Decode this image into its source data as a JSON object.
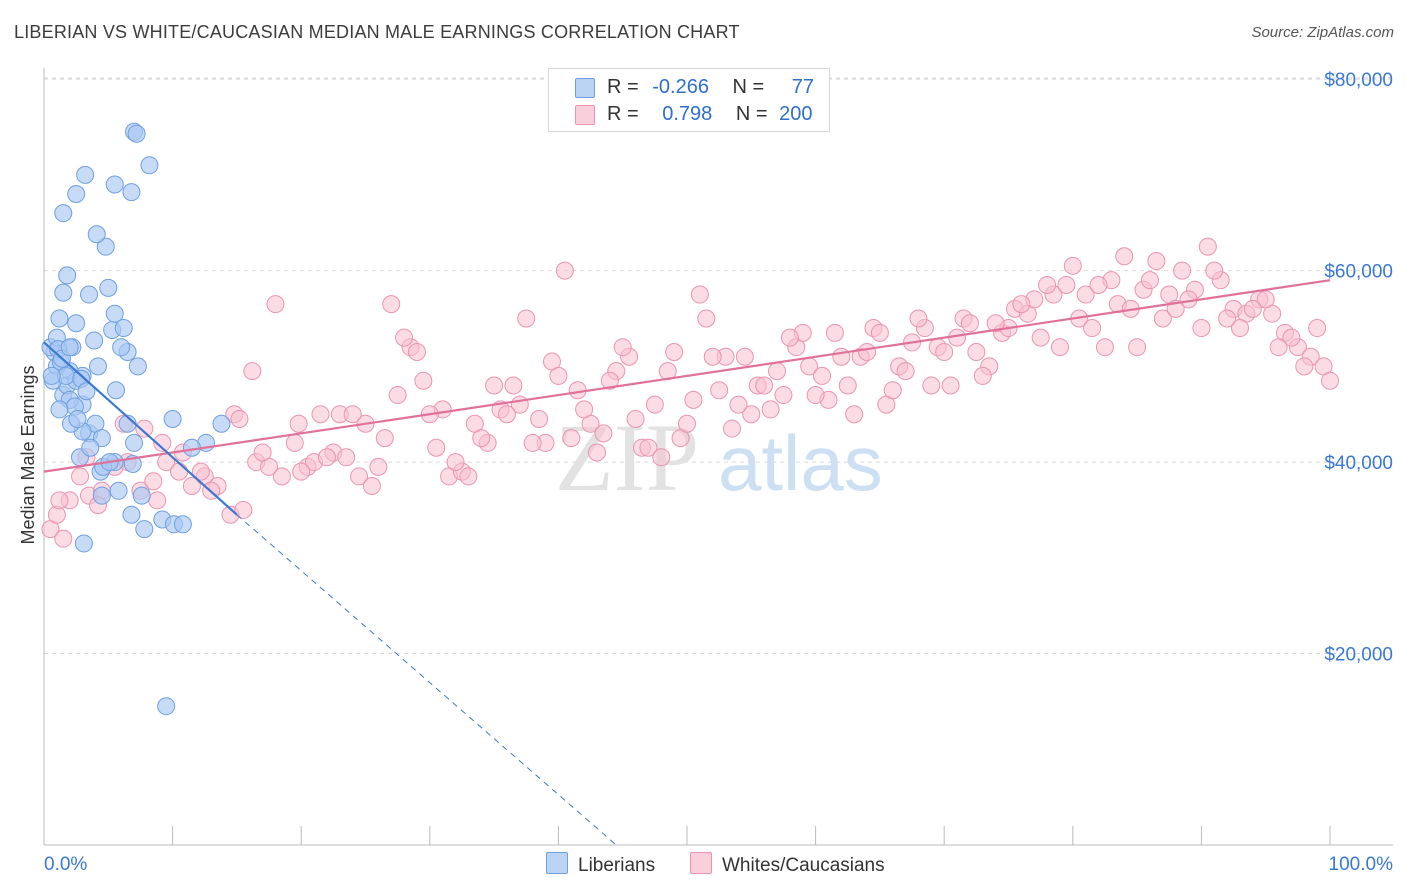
{
  "title": "LIBERIAN VS WHITE/CAUCASIAN MEDIAN MALE EARNINGS CORRELATION CHART",
  "source": "Source: ZipAtlas.com",
  "watermark": {
    "zip": "ZIP",
    "atlas": "atlas"
  },
  "legend": {
    "rows": [
      {
        "r_label": "R =",
        "r_value": "-0.266",
        "n_label": "N =",
        "n_value": "77"
      },
      {
        "r_label": "R =",
        "r_value": "0.798",
        "n_label": "N =",
        "n_value": "200"
      }
    ]
  },
  "bottom_legend": {
    "liberians": "Liberians",
    "whites": "Whites/Caucasians"
  },
  "colors": {
    "liberian_fill": "#a9c8f2",
    "liberian_stroke": "#6f9fe0",
    "liberian_line": "#3a78d4",
    "white_fill": "#f7bfd0",
    "white_stroke": "#eb94b0",
    "white_line": "#e0729a",
    "axis_text": "#3a78d4",
    "grid": "#d9d9d9"
  },
  "chart_data": {
    "type": "scatter",
    "title": "LIBERIAN VS WHITE/CAUCASIAN MEDIAN MALE EARNINGS CORRELATION CHART",
    "xlabel": "",
    "ylabel": "Median Male Earnings",
    "xlim": [
      0,
      100
    ],
    "ylim": [
      0,
      82000
    ],
    "x_tick_labels": [
      "0.0%",
      "100.0%"
    ],
    "y_ticks": [
      {
        "value": 20000,
        "label": "$20,000"
      },
      {
        "value": 40000,
        "label": "$40,000"
      },
      {
        "value": 60000,
        "label": "$60,000"
      },
      {
        "value": 80000,
        "label": "$80,000"
      }
    ],
    "series": [
      {
        "name": "Liberians",
        "r": -0.266,
        "n": 77,
        "trend": {
          "x0": 0,
          "y0": 52500,
          "x1": 15,
          "y1": 34500,
          "dash_x_end": 44.5,
          "dash_y_end": 0
        },
        "points": [
          [
            1.5,
            66000
          ],
          [
            1.2,
            55000
          ],
          [
            2.5,
            54500
          ],
          [
            3,
            49000
          ],
          [
            2,
            49500
          ],
          [
            1.5,
            47000
          ],
          [
            0.8,
            51500
          ],
          [
            1,
            50000
          ],
          [
            1.8,
            48000
          ],
          [
            2.2,
            52000
          ],
          [
            3.5,
            43000
          ],
          [
            4,
            44000
          ],
          [
            3,
            46000
          ],
          [
            2.5,
            48500
          ],
          [
            4.2,
            50000
          ],
          [
            0.5,
            52000
          ],
          [
            1,
            53000
          ],
          [
            3.5,
            57500
          ],
          [
            1.5,
            57700
          ],
          [
            1.8,
            59500
          ],
          [
            4.8,
            62500
          ],
          [
            4.1,
            63800
          ],
          [
            2.5,
            68000
          ],
          [
            3.2,
            70000
          ],
          [
            5.5,
            69000
          ],
          [
            6.8,
            68200
          ],
          [
            8.2,
            71000
          ],
          [
            7.0,
            74500
          ],
          [
            7.2,
            74300
          ],
          [
            5,
            58200
          ],
          [
            2,
            46500
          ],
          [
            2.8,
            40500
          ],
          [
            3,
            43200
          ],
          [
            4.5,
            42500
          ],
          [
            5.6,
            47500
          ],
          [
            6.5,
            44000
          ],
          [
            5.3,
            53800
          ],
          [
            5.5,
            55500
          ],
          [
            6.2,
            54000
          ],
          [
            6.5,
            51500
          ],
          [
            7.3,
            50000
          ],
          [
            7,
            42000
          ],
          [
            5.8,
            37000
          ],
          [
            4.4,
            39000
          ],
          [
            5.5,
            40000
          ],
          [
            6.9,
            39800
          ],
          [
            7.6,
            36500
          ],
          [
            9.2,
            34000
          ],
          [
            10.1,
            33500
          ],
          [
            10.8,
            33500
          ],
          [
            7.8,
            33000
          ],
          [
            4.6,
            39500
          ],
          [
            4.5,
            36500
          ],
          [
            6.8,
            34500
          ],
          [
            3.1,
            31500
          ],
          [
            10,
            44500
          ],
          [
            12.6,
            42000
          ],
          [
            13.8,
            44000
          ],
          [
            9.5,
            14500
          ],
          [
            1.3,
            50500
          ],
          [
            0.7,
            48500
          ],
          [
            1.1,
            51800
          ],
          [
            1.4,
            50800
          ],
          [
            2,
            52000
          ],
          [
            1.7,
            49000
          ],
          [
            0.6,
            49000
          ],
          [
            2.4,
            45800
          ],
          [
            2.9,
            48700
          ],
          [
            3.3,
            47400
          ],
          [
            2.1,
            44000
          ],
          [
            1.2,
            45500
          ],
          [
            5.1,
            40000
          ],
          [
            3.9,
            52700
          ],
          [
            6.0,
            52000
          ],
          [
            2.6,
            44500
          ],
          [
            3.6,
            41500
          ],
          [
            11.5,
            41500
          ]
        ]
      },
      {
        "name": "Whites/Caucasians",
        "r": 0.798,
        "n": 200,
        "trend": {
          "x0": 0,
          "y0": 39000,
          "x1": 100,
          "y1": 59000
        },
        "points": [
          [
            0.5,
            33000
          ],
          [
            1,
            34500
          ],
          [
            1.5,
            32000
          ],
          [
            2,
            36000
          ],
          [
            3.5,
            36500
          ],
          [
            4.5,
            37000
          ],
          [
            5.5,
            39500
          ],
          [
            6.5,
            40000
          ],
          [
            7.5,
            37000
          ],
          [
            8.5,
            38000
          ],
          [
            9.5,
            40000
          ],
          [
            10.5,
            39000
          ],
          [
            11.5,
            37500
          ],
          [
            12.5,
            38500
          ],
          [
            13.5,
            37500
          ],
          [
            14.5,
            34500
          ],
          [
            15.5,
            35000
          ],
          [
            16.5,
            40000
          ],
          [
            17.5,
            39500
          ],
          [
            18.5,
            38500
          ],
          [
            19.5,
            42000
          ],
          [
            20.5,
            39500
          ],
          [
            21.5,
            45000
          ],
          [
            22.5,
            41000
          ],
          [
            23.5,
            40500
          ],
          [
            24.5,
            38500
          ],
          [
            25.5,
            37500
          ],
          [
            26.5,
            42500
          ],
          [
            27.5,
            47000
          ],
          [
            28.5,
            52000
          ],
          [
            29.5,
            48500
          ],
          [
            30.5,
            41500
          ],
          [
            31.5,
            38500
          ],
          [
            32.5,
            39000
          ],
          [
            33.5,
            44000
          ],
          [
            34.5,
            42000
          ],
          [
            35.5,
            45500
          ],
          [
            36.5,
            48000
          ],
          [
            37.5,
            55000
          ],
          [
            38.5,
            44500
          ],
          [
            39.5,
            50500
          ],
          [
            40.5,
            60000
          ],
          [
            41.5,
            47500
          ],
          [
            42.5,
            44000
          ],
          [
            43.5,
            43000
          ],
          [
            44.5,
            49500
          ],
          [
            45.5,
            51000
          ],
          [
            46.5,
            41500
          ],
          [
            47.5,
            46000
          ],
          [
            48.5,
            49500
          ],
          [
            49.5,
            42500
          ],
          [
            50.5,
            46500
          ],
          [
            51.5,
            55000
          ],
          [
            52.5,
            47500
          ],
          [
            53.5,
            43500
          ],
          [
            54.5,
            51000
          ],
          [
            55.5,
            48000
          ],
          [
            56.5,
            45500
          ],
          [
            57.5,
            47000
          ],
          [
            58.5,
            52000
          ],
          [
            59.5,
            50000
          ],
          [
            60.5,
            49000
          ],
          [
            61.5,
            53500
          ],
          [
            62.5,
            48000
          ],
          [
            63.5,
            51000
          ],
          [
            64.5,
            54000
          ],
          [
            65.5,
            46000
          ],
          [
            66.5,
            50000
          ],
          [
            67.5,
            52500
          ],
          [
            68.5,
            54000
          ],
          [
            69.5,
            52000
          ],
          [
            70.5,
            48000
          ],
          [
            71.5,
            55000
          ],
          [
            72.5,
            51500
          ],
          [
            73.5,
            50000
          ],
          [
            74.5,
            53500
          ],
          [
            75.5,
            56000
          ],
          [
            76.5,
            55500
          ],
          [
            77.5,
            53000
          ],
          [
            78.5,
            57500
          ],
          [
            79.5,
            58500
          ],
          [
            80.5,
            55000
          ],
          [
            81.5,
            54000
          ],
          [
            82.5,
            52000
          ],
          [
            83.5,
            56500
          ],
          [
            84.5,
            56000
          ],
          [
            85.5,
            58000
          ],
          [
            86.5,
            61000
          ],
          [
            87.5,
            57500
          ],
          [
            88.5,
            60000
          ],
          [
            89.5,
            58000
          ],
          [
            90.5,
            62500
          ],
          [
            91.5,
            59000
          ],
          [
            92.5,
            56000
          ],
          [
            93.5,
            55500
          ],
          [
            94.5,
            57000
          ],
          [
            95.5,
            55500
          ],
          [
            96.5,
            53500
          ],
          [
            97.5,
            52000
          ],
          [
            98.5,
            51000
          ],
          [
            99.5,
            50000
          ],
          [
            1.2,
            36000
          ],
          [
            2.8,
            38500
          ],
          [
            4.2,
            35500
          ],
          [
            6.2,
            44000
          ],
          [
            7.8,
            43500
          ],
          [
            9.2,
            42000
          ],
          [
            10.8,
            41000
          ],
          [
            13,
            37000
          ],
          [
            14.8,
            45000
          ],
          [
            16.2,
            49500
          ],
          [
            18,
            56500
          ],
          [
            19.8,
            44000
          ],
          [
            21,
            40000
          ],
          [
            23,
            45000
          ],
          [
            25,
            44000
          ],
          [
            27,
            56500
          ],
          [
            29,
            51500
          ],
          [
            31,
            45500
          ],
          [
            33,
            38500
          ],
          [
            35,
            48000
          ],
          [
            37,
            46000
          ],
          [
            39,
            42000
          ],
          [
            41,
            42500
          ],
          [
            43,
            41000
          ],
          [
            45,
            52000
          ],
          [
            47,
            41500
          ],
          [
            49,
            51500
          ],
          [
            51,
            57500
          ],
          [
            53,
            51000
          ],
          [
            55,
            45000
          ],
          [
            57,
            49500
          ],
          [
            59,
            53500
          ],
          [
            61,
            46500
          ],
          [
            63,
            45000
          ],
          [
            65,
            53500
          ],
          [
            67,
            49500
          ],
          [
            69,
            48000
          ],
          [
            71,
            53000
          ],
          [
            73,
            49000
          ],
          [
            75,
            54000
          ],
          [
            77,
            57000
          ],
          [
            79,
            52000
          ],
          [
            81,
            57500
          ],
          [
            83,
            59000
          ],
          [
            85,
            52000
          ],
          [
            87,
            55000
          ],
          [
            89,
            57000
          ],
          [
            91,
            60000
          ],
          [
            93,
            54000
          ],
          [
            95,
            57000
          ],
          [
            97,
            53000
          ],
          [
            99,
            54000
          ],
          [
            3.3,
            40500
          ],
          [
            8.8,
            36000
          ],
          [
            12.2,
            39000
          ],
          [
            15.2,
            44500
          ],
          [
            17,
            41000
          ],
          [
            20,
            39000
          ],
          [
            22,
            40500
          ],
          [
            24,
            45000
          ],
          [
            26,
            39500
          ],
          [
            28,
            53000
          ],
          [
            30,
            45000
          ],
          [
            32,
            40000
          ],
          [
            34,
            42500
          ],
          [
            36,
            45000
          ],
          [
            38,
            42000
          ],
          [
            40,
            49000
          ],
          [
            42,
            45500
          ],
          [
            44,
            48500
          ],
          [
            46,
            44500
          ],
          [
            48,
            40500
          ],
          [
            50,
            44000
          ],
          [
            52,
            51000
          ],
          [
            54,
            46000
          ],
          [
            56,
            48000
          ],
          [
            58,
            53000
          ],
          [
            60,
            47000
          ],
          [
            62,
            51000
          ],
          [
            64,
            51500
          ],
          [
            66,
            47500
          ],
          [
            68,
            55000
          ],
          [
            70,
            51500
          ],
          [
            72,
            54500
          ],
          [
            74,
            54500
          ],
          [
            76,
            56500
          ],
          [
            78,
            58500
          ],
          [
            80,
            60500
          ],
          [
            82,
            58500
          ],
          [
            84,
            61500
          ],
          [
            86,
            59000
          ],
          [
            88,
            56000
          ],
          [
            90,
            54000
          ],
          [
            92,
            55000
          ],
          [
            94,
            56000
          ],
          [
            96,
            52000
          ],
          [
            98,
            50000
          ],
          [
            100,
            48500
          ]
        ]
      }
    ]
  }
}
